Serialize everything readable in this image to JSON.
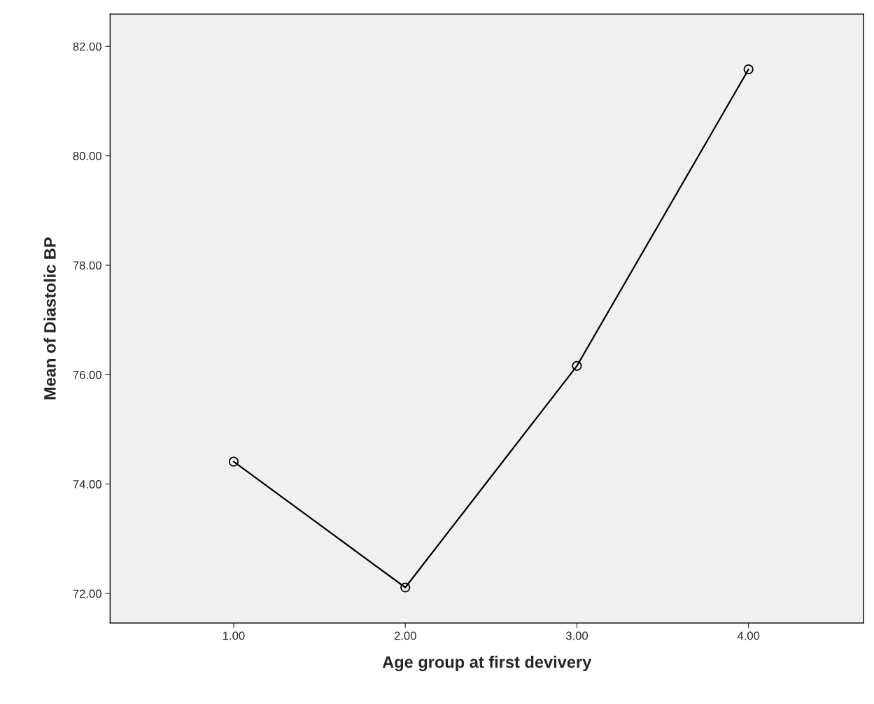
{
  "chart_data": {
    "type": "line",
    "xlabel": "Age group at first devivery",
    "ylabel": "Mean of Diastolic BP",
    "x": [
      1,
      2,
      3,
      4
    ],
    "series": [
      {
        "color": "#000000",
        "values": [
          74.41,
          72.11,
          76.16,
          81.58
        ]
      }
    ],
    "xlim": [
      0.28,
      4.67
    ],
    "ylim": [
      71.46,
      82.59
    ],
    "xticks": [
      {
        "value": 1,
        "label": "1.00"
      },
      {
        "value": 2,
        "label": "2.00"
      },
      {
        "value": 3,
        "label": "3.00"
      },
      {
        "value": 4,
        "label": "4.00"
      }
    ],
    "yticks": [
      {
        "value": 72,
        "label": "72.00"
      },
      {
        "value": 74,
        "label": "74.00"
      },
      {
        "value": 76,
        "label": "76.00"
      },
      {
        "value": 78,
        "label": "78.00"
      },
      {
        "value": 80,
        "label": "80.00"
      },
      {
        "value": 82,
        "label": "82.00"
      }
    ],
    "marker": "circle",
    "line_style": "solid",
    "grid": false,
    "legend": false
  }
}
